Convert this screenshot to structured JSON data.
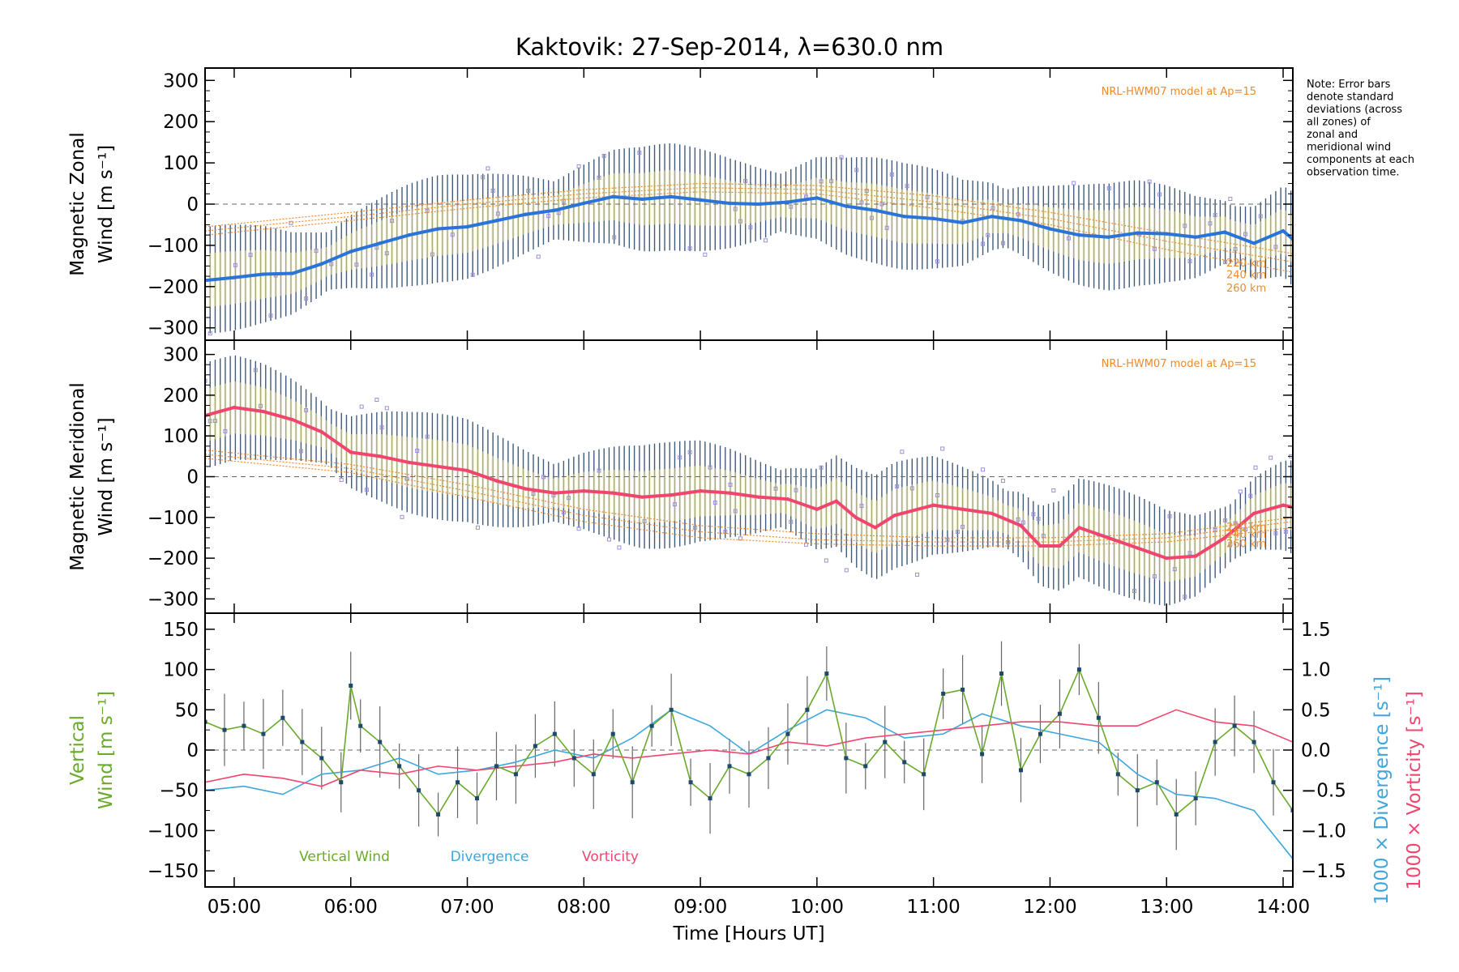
{
  "chart_data": [
    {
      "panel": "zonal",
      "type": "line",
      "title": "Kaktovik: 27-Sep-2014, λ=630.0 nm",
      "ylabel_line1": "Magnetic Zonal",
      "ylabel_line2": "Wind [m s⁻¹]",
      "xlabel": "Time [Hours UT]",
      "x_ticks": [
        "05:00",
        "06:00",
        "07:00",
        "08:00",
        "09:00",
        "10:00",
        "11:00",
        "12:00",
        "13:00",
        "14:00"
      ],
      "y_ticks": [
        300,
        200,
        100,
        0,
        -100,
        -200,
        -300
      ],
      "ylim": [
        -330,
        330
      ],
      "xlim": [
        "04:45",
        "14:05"
      ],
      "model_label": "NRL-HWM07 model at Ap=15",
      "altitude_labels": [
        "220 km",
        "240 km",
        "260 km"
      ],
      "note": "Note: Error bars denote standard deviations (across all zones) of zonal and meridional wind components at each observation time.",
      "series": [
        {
          "name": "Magnetic Zonal Wind",
          "color": "#2a73d8",
          "x": [
            "04:45",
            "05:00",
            "05:15",
            "05:30",
            "05:45",
            "06:00",
            "06:15",
            "06:30",
            "06:45",
            "07:00",
            "07:15",
            "07:30",
            "07:45",
            "08:00",
            "08:15",
            "08:30",
            "08:45",
            "09:00",
            "09:15",
            "09:30",
            "09:45",
            "10:00",
            "10:15",
            "10:30",
            "10:45",
            "11:00",
            "11:15",
            "11:30",
            "11:45",
            "12:00",
            "12:15",
            "12:30",
            "12:45",
            "13:00",
            "13:15",
            "13:30",
            "13:45",
            "14:00",
            "14:05"
          ],
          "y": [
            -185,
            -178,
            -170,
            -168,
            -145,
            -115,
            -95,
            -75,
            -60,
            -55,
            -40,
            -25,
            -15,
            2,
            18,
            12,
            18,
            10,
            2,
            0,
            5,
            15,
            -5,
            -15,
            -30,
            -35,
            -45,
            -30,
            -40,
            -60,
            -75,
            -80,
            -70,
            -72,
            -80,
            -68,
            -95,
            -65,
            -85
          ]
        }
      ],
      "hwm_model": {
        "color": "#f08a2a",
        "x": [
          "04:45",
          "06:00",
          "07:00",
          "08:00",
          "09:00",
          "10:00",
          "11:00",
          "12:00",
          "13:00",
          "14:05"
        ],
        "lines": [
          [
            -55,
            -20,
            10,
            35,
            50,
            45,
            20,
            -20,
            -70,
            -120
          ],
          [
            -65,
            -30,
            0,
            25,
            40,
            35,
            5,
            -35,
            -90,
            -140
          ],
          [
            -75,
            -40,
            -10,
            15,
            30,
            25,
            -10,
            -50,
            -110,
            -165
          ]
        ]
      }
    },
    {
      "panel": "meridional",
      "type": "line",
      "ylabel_line1": "Magnetic Meridional",
      "ylabel_line2": "Wind [m s⁻¹]",
      "y_ticks": [
        300,
        200,
        100,
        0,
        -100,
        -200,
        -300
      ],
      "ylim": [
        -335,
        335
      ],
      "model_label": "NRL-HWM07 model at Ap=15",
      "altitude_labels": [
        "220 km",
        "240 km",
        "260 km"
      ],
      "series": [
        {
          "name": "Magnetic Meridional Wind",
          "color": "#f0456e",
          "x": [
            "04:45",
            "05:00",
            "05:15",
            "05:30",
            "05:45",
            "06:00",
            "06:15",
            "06:30",
            "06:45",
            "07:00",
            "07:15",
            "07:30",
            "07:45",
            "08:00",
            "08:15",
            "08:30",
            "08:45",
            "09:00",
            "09:15",
            "09:30",
            "09:45",
            "10:00",
            "10:10",
            "10:20",
            "10:30",
            "10:40",
            "11:00",
            "11:15",
            "11:30",
            "11:45",
            "11:55",
            "12:05",
            "12:15",
            "12:30",
            "12:45",
            "13:00",
            "13:15",
            "13:30",
            "13:45",
            "14:00",
            "14:05"
          ],
          "y": [
            150,
            170,
            160,
            140,
            110,
            60,
            50,
            35,
            25,
            15,
            -10,
            -30,
            -40,
            -35,
            -40,
            -50,
            -45,
            -35,
            -40,
            -50,
            -55,
            -80,
            -60,
            -100,
            -125,
            -95,
            -70,
            -80,
            -90,
            -120,
            -170,
            -170,
            -125,
            -150,
            -175,
            -200,
            -195,
            -150,
            -90,
            -70,
            -75
          ]
        }
      ],
      "hwm_model": {
        "color": "#f08a2a",
        "x": [
          "04:45",
          "06:00",
          "07:00",
          "08:00",
          "09:00",
          "10:00",
          "11:00",
          "12:00",
          "13:00",
          "14:05"
        ],
        "lines": [
          [
            65,
            30,
            -20,
            -80,
            -120,
            -140,
            -150,
            -150,
            -140,
            -100
          ],
          [
            55,
            20,
            -35,
            -95,
            -135,
            -155,
            -160,
            -160,
            -150,
            -110
          ],
          [
            45,
            10,
            -50,
            -110,
            -150,
            -165,
            -170,
            -170,
            -160,
            -125
          ]
        ]
      }
    },
    {
      "panel": "vertical",
      "type": "line",
      "ylabel_line1": "Vertical",
      "ylabel_line2": "Wind [m s⁻¹]",
      "y_ticks": [
        150,
        100,
        50,
        0,
        -50,
        -100,
        -150
      ],
      "ylim": [
        -170,
        170
      ],
      "y2_ticks": [
        "1.5",
        "1.0",
        "0.5",
        "0.0",
        "-0.5",
        "-1.0",
        "-1.5"
      ],
      "y2lim": [
        -1.7,
        1.7
      ],
      "y2label_div": "1000 × Divergence [s⁻¹]",
      "y2label_vort": "1000 × Vorticity [s⁻¹]",
      "legend": [
        "Vertical Wind",
        "Divergence",
        "Vorticity"
      ],
      "series": [
        {
          "name": "Vertical Wind",
          "color": "#6aaa2a",
          "axis": "left",
          "x": [
            "04:45",
            "04:55",
            "05:05",
            "05:15",
            "05:25",
            "05:35",
            "05:45",
            "05:55",
            "06:00",
            "06:05",
            "06:15",
            "06:25",
            "06:35",
            "06:45",
            "06:55",
            "07:05",
            "07:15",
            "07:25",
            "07:35",
            "07:45",
            "07:55",
            "08:05",
            "08:15",
            "08:25",
            "08:35",
            "08:45",
            "08:55",
            "09:05",
            "09:15",
            "09:25",
            "09:35",
            "09:45",
            "09:55",
            "10:05",
            "10:15",
            "10:25",
            "10:35",
            "10:45",
            "10:55",
            "11:05",
            "11:15",
            "11:25",
            "11:35",
            "11:45",
            "11:55",
            "12:05",
            "12:15",
            "12:25",
            "12:35",
            "12:45",
            "12:55",
            "13:05",
            "13:15",
            "13:25",
            "13:35",
            "13:45",
            "13:55",
            "14:05"
          ],
          "y": [
            35,
            25,
            30,
            20,
            40,
            10,
            -10,
            -40,
            80,
            30,
            10,
            -20,
            -50,
            -80,
            -40,
            -60,
            -20,
            -30,
            5,
            20,
            -10,
            -30,
            20,
            -40,
            30,
            50,
            -40,
            -60,
            -20,
            -30,
            -10,
            20,
            50,
            95,
            -10,
            -20,
            10,
            -15,
            -30,
            70,
            75,
            -5,
            95,
            -25,
            20,
            45,
            100,
            40,
            -30,
            -50,
            -40,
            -80,
            -60,
            10,
            30,
            10,
            -40,
            -75
          ]
        },
        {
          "name": "Divergence",
          "color": "#3ea6dc",
          "axis": "right",
          "x": [
            "04:45",
            "05:05",
            "05:25",
            "05:45",
            "06:05",
            "06:25",
            "06:45",
            "07:05",
            "07:25",
            "07:45",
            "08:05",
            "08:25",
            "08:45",
            "09:05",
            "09:25",
            "09:45",
            "10:05",
            "10:25",
            "10:45",
            "11:05",
            "11:25",
            "11:45",
            "12:05",
            "12:25",
            "12:45",
            "13:05",
            "13:25",
            "13:45",
            "14:05"
          ],
          "y": [
            -0.5,
            -0.45,
            -0.55,
            -0.3,
            -0.25,
            -0.1,
            -0.3,
            -0.25,
            -0.15,
            0.0,
            -0.1,
            0.15,
            0.5,
            0.3,
            -0.05,
            0.25,
            0.5,
            0.4,
            0.15,
            0.2,
            0.45,
            0.3,
            0.2,
            0.1,
            -0.3,
            -0.55,
            -0.6,
            -0.75,
            -1.35
          ]
        },
        {
          "name": "Vorticity",
          "color": "#f0456e",
          "axis": "right",
          "x": [
            "04:45",
            "05:05",
            "05:25",
            "05:45",
            "06:05",
            "06:25",
            "06:45",
            "07:05",
            "07:25",
            "07:45",
            "08:05",
            "08:25",
            "08:45",
            "09:05",
            "09:25",
            "09:45",
            "10:05",
            "10:25",
            "10:45",
            "11:05",
            "11:25",
            "11:45",
            "12:05",
            "12:25",
            "12:45",
            "13:05",
            "13:25",
            "13:45",
            "14:05"
          ],
          "y": [
            -0.4,
            -0.3,
            -0.35,
            -0.45,
            -0.25,
            -0.3,
            -0.2,
            -0.25,
            -0.2,
            -0.15,
            -0.05,
            -0.1,
            -0.05,
            0.0,
            -0.05,
            0.1,
            0.05,
            0.15,
            0.2,
            0.25,
            0.3,
            0.35,
            0.35,
            0.3,
            0.3,
            0.5,
            0.35,
            0.3,
            0.1
          ]
        }
      ]
    }
  ]
}
